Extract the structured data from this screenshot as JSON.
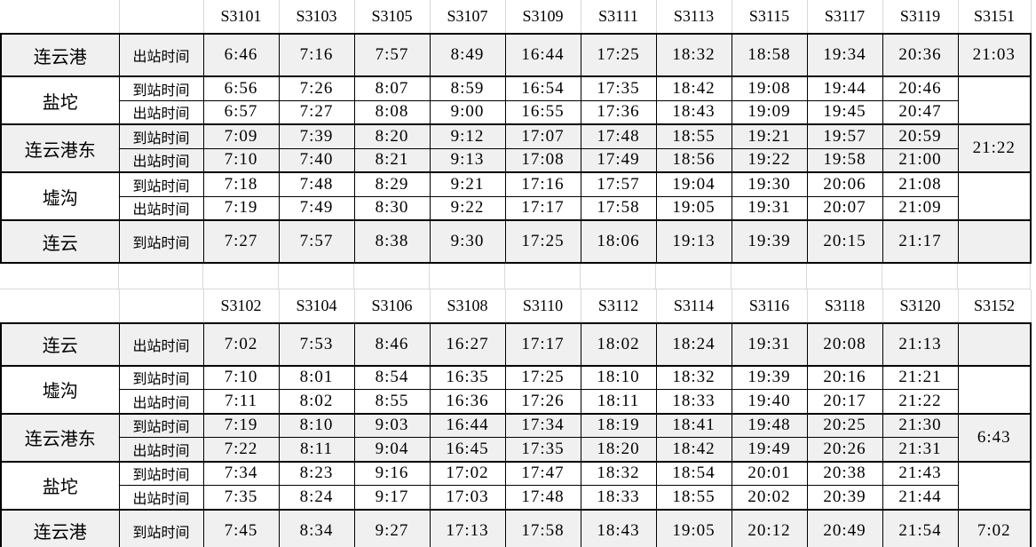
{
  "sheet": {
    "background_color": "#ffffff",
    "shaded_row_color": "#f0f0f0",
    "grid_light_color": "#d8d8d8",
    "grid_dark_color": "#000000",
    "arrive_label": "到站时间",
    "depart_label": "出站时间"
  },
  "chart_data": [
    {
      "type": "table",
      "title": "",
      "trains": [
        "S3101",
        "S3103",
        "S3105",
        "S3107",
        "S3109",
        "S3111",
        "S3113",
        "S3115",
        "S3117",
        "S3119",
        "S3151"
      ],
      "groups": [
        {
          "station": "连云港",
          "shaded": true,
          "last": "21:03",
          "rows": [
            {
              "label": "出站时间",
              "times": [
                "6:46",
                "7:16",
                "7:57",
                "8:49",
                "16:44",
                "17:25",
                "18:32",
                "18:58",
                "19:34",
                "20:36"
              ]
            }
          ]
        },
        {
          "station": "盐坨",
          "shaded": false,
          "last": "",
          "rows": [
            {
              "label": "到站时间",
              "times": [
                "6:56",
                "7:26",
                "8:07",
                "8:59",
                "16:54",
                "17:35",
                "18:42",
                "19:08",
                "19:44",
                "20:46"
              ]
            },
            {
              "label": "出站时间",
              "times": [
                "6:57",
                "7:27",
                "8:08",
                "9:00",
                "16:55",
                "17:36",
                "18:43",
                "19:09",
                "19:45",
                "20:47"
              ]
            }
          ]
        },
        {
          "station": "连云港东",
          "shaded": true,
          "last": "21:22",
          "rows": [
            {
              "label": "到站时间",
              "times": [
                "7:09",
                "7:39",
                "8:20",
                "9:12",
                "17:07",
                "17:48",
                "18:55",
                "19:21",
                "19:57",
                "20:59"
              ]
            },
            {
              "label": "出站时间",
              "times": [
                "7:10",
                "7:40",
                "8:21",
                "9:13",
                "17:08",
                "17:49",
                "18:56",
                "19:22",
                "19:58",
                "21:00"
              ]
            }
          ]
        },
        {
          "station": "墟沟",
          "shaded": false,
          "last": "",
          "rows": [
            {
              "label": "到站时间",
              "times": [
                "7:18",
                "7:48",
                "8:29",
                "9:21",
                "17:16",
                "17:57",
                "19:04",
                "19:30",
                "20:06",
                "21:08"
              ]
            },
            {
              "label": "出站时间",
              "times": [
                "7:19",
                "7:49",
                "8:30",
                "9:22",
                "17:17",
                "17:58",
                "19:05",
                "19:31",
                "20:07",
                "21:09"
              ]
            }
          ]
        },
        {
          "station": "连云",
          "shaded": true,
          "last": "",
          "rows": [
            {
              "label": "到站时间",
              "times": [
                "7:27",
                "7:57",
                "8:38",
                "9:30",
                "17:25",
                "18:06",
                "19:13",
                "19:39",
                "20:15",
                "21:17"
              ]
            }
          ]
        }
      ]
    },
    {
      "type": "table",
      "title": "",
      "trains": [
        "S3102",
        "S3104",
        "S3106",
        "S3108",
        "S3110",
        "S3112",
        "S3114",
        "S3116",
        "S3118",
        "S3120",
        "S3152"
      ],
      "groups": [
        {
          "station": "连云",
          "shaded": true,
          "last": "",
          "rows": [
            {
              "label": "出站时间",
              "times": [
                "7:02",
                "7:53",
                "8:46",
                "16:27",
                "17:17",
                "18:02",
                "18:24",
                "19:31",
                "20:08",
                "21:13"
              ]
            }
          ]
        },
        {
          "station": "墟沟",
          "shaded": false,
          "last": "",
          "rows": [
            {
              "label": "到站时间",
              "times": [
                "7:10",
                "8:01",
                "8:54",
                "16:35",
                "17:25",
                "18:10",
                "18:32",
                "19:39",
                "20:16",
                "21:21"
              ]
            },
            {
              "label": "出站时间",
              "times": [
                "7:11",
                "8:02",
                "8:55",
                "16:36",
                "17:26",
                "18:11",
                "18:33",
                "19:40",
                "20:17",
                "21:22"
              ]
            }
          ]
        },
        {
          "station": "连云港东",
          "shaded": true,
          "last": "6:43",
          "rows": [
            {
              "label": "到站时间",
              "times": [
                "7:19",
                "8:10",
                "9:03",
                "16:44",
                "17:34",
                "18:19",
                "18:41",
                "19:48",
                "20:25",
                "21:30"
              ]
            },
            {
              "label": "出站时间",
              "times": [
                "7:22",
                "8:11",
                "9:04",
                "16:45",
                "17:35",
                "18:20",
                "18:42",
                "19:49",
                "20:26",
                "21:31"
              ]
            }
          ]
        },
        {
          "station": "盐坨",
          "shaded": false,
          "last": "",
          "rows": [
            {
              "label": "到站时间",
              "times": [
                "7:34",
                "8:23",
                "9:16",
                "17:02",
                "17:47",
                "18:32",
                "18:54",
                "20:01",
                "20:38",
                "21:43"
              ]
            },
            {
              "label": "出站时间",
              "times": [
                "7:35",
                "8:24",
                "9:17",
                "17:03",
                "17:48",
                "18:33",
                "18:55",
                "20:02",
                "20:39",
                "21:44"
              ]
            }
          ]
        },
        {
          "station": "连云港",
          "shaded": true,
          "last": "7:02",
          "rows": [
            {
              "label": "到站时间",
              "times": [
                "7:45",
                "8:34",
                "9:27",
                "17:13",
                "17:58",
                "18:43",
                "19:05",
                "20:12",
                "20:49",
                "21:54"
              ]
            }
          ]
        }
      ]
    }
  ]
}
